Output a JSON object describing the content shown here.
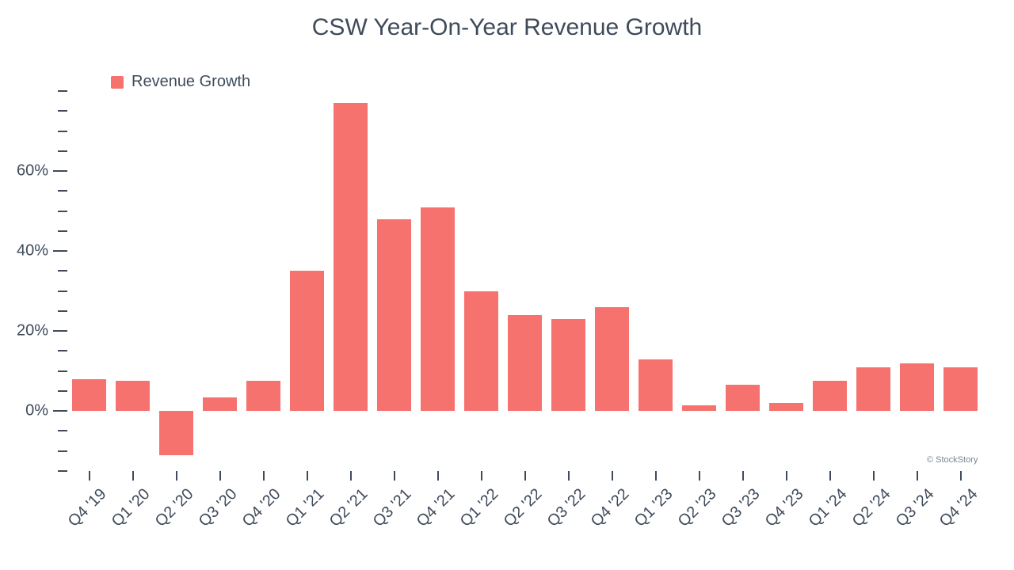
{
  "chart": {
    "type": "bar",
    "title": "CSW Year-On-Year Revenue Growth",
    "title_fontsize": 30,
    "title_color": "#3f4b5b",
    "legend": {
      "label": "Revenue Growth",
      "color": "#f6726f",
      "fontsize": 20,
      "position": "top-left"
    },
    "background_color": "#ffffff",
    "axis_color": "#3f4b5b",
    "label_fontsize": 20,
    "label_color": "#3f4b5b",
    "bar_color": "#f6726f",
    "bar_width_ratio": 0.78,
    "ylim": [
      -15,
      80
    ],
    "y_major_ticks": [
      0,
      20,
      40,
      60
    ],
    "y_minor_step": 5,
    "y_tick_label_suffix": "%",
    "categories": [
      "Q4 '19",
      "Q1 '20",
      "Q2 '20",
      "Q3 '20",
      "Q4 '20",
      "Q1 '21",
      "Q2 '21",
      "Q3 '21",
      "Q4 '21",
      "Q1 '22",
      "Q2 '22",
      "Q3 '22",
      "Q4 '22",
      "Q1 '23",
      "Q2 '23",
      "Q3 '23",
      "Q4 '23",
      "Q1 '24",
      "Q2 '24",
      "Q3 '24",
      "Q4 '24"
    ],
    "values": [
      8,
      7.5,
      -11,
      3.5,
      7.5,
      35,
      77,
      48,
      51,
      30,
      24,
      23,
      26,
      13,
      1.5,
      6.5,
      2,
      7.5,
      11,
      12,
      11
    ],
    "watermark": "© StockStory",
    "watermark_color": "#7a8494",
    "watermark_fontsize": 11,
    "xlabel_rotation_deg": -45
  }
}
